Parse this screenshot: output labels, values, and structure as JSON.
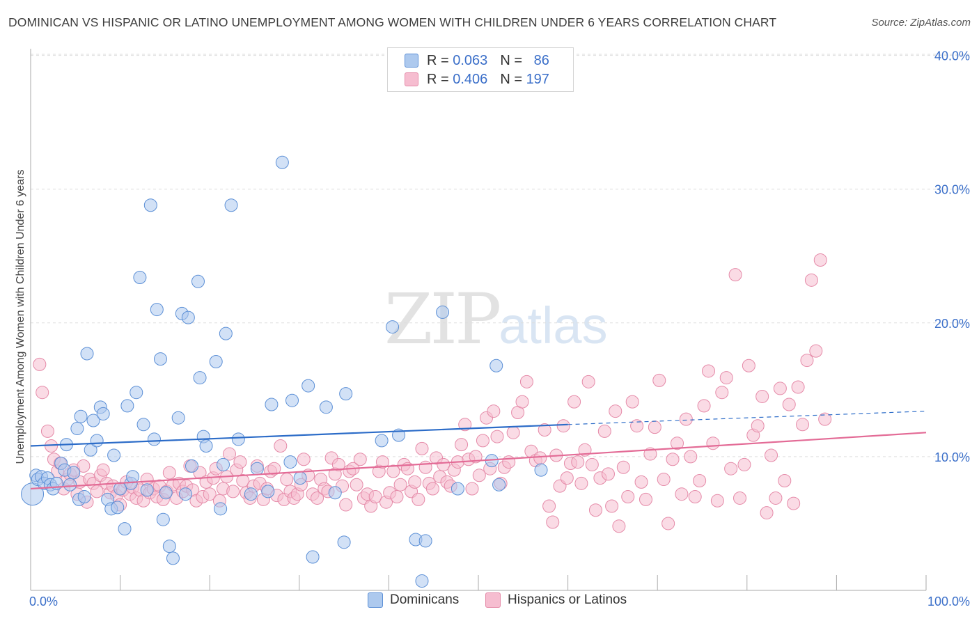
{
  "title": "DOMINICAN VS HISPANIC OR LATINO UNEMPLOYMENT AMONG WOMEN WITH CHILDREN UNDER 6 YEARS CORRELATION CHART",
  "source": "Source: ZipAtlas.com",
  "watermark": {
    "zip": "ZIP",
    "atlas": "atlas"
  },
  "legend": {
    "rows": [
      {
        "r_label": "R =",
        "r_value": "0.063",
        "n_label": "N =",
        "n_value": "86"
      },
      {
        "r_label": "R =",
        "r_value": "0.406",
        "n_label": "N =",
        "n_value": "197"
      }
    ]
  },
  "colors": {
    "dominicans_fill": "#adc9ee",
    "dominicans_stroke": "#5b8fd6",
    "dominicans_line": "#2c6cc8",
    "hispanics_fill": "#f6bdd0",
    "hispanics_stroke": "#e58aa8",
    "hispanics_line": "#e36b96",
    "tick_label": "#3b6fc9",
    "grid": "#dddddd",
    "axis": "#aaaaaa"
  },
  "chart_data": {
    "type": "scatter",
    "title": "DOMINICAN VS HISPANIC OR LATINO UNEMPLOYMENT AMONG WOMEN WITH CHILDREN UNDER 6 YEARS CORRELATION CHART",
    "xlabel": "",
    "ylabel": "Unemployment Among Women with Children Under 6 years",
    "xlim": [
      0,
      100
    ],
    "ylim": [
      0,
      40.5
    ],
    "x_tick_labels": [
      {
        "value": 0,
        "label": "0.0%"
      },
      {
        "value": 100,
        "label": "100.0%"
      }
    ],
    "y_tick_labels": [
      {
        "value": 10,
        "label": "10.0%"
      },
      {
        "value": 20,
        "label": "20.0%"
      },
      {
        "value": 30,
        "label": "30.0%"
      },
      {
        "value": 40,
        "label": "40.0%"
      }
    ],
    "grid": true,
    "legend_position": "top-center",
    "series": [
      {
        "name": "Dominicans",
        "r": 0.063,
        "n": 86,
        "trend": {
          "x0": 0,
          "y0": 10.8,
          "x1": 60,
          "y1": 12.4,
          "dash_to_x": 100,
          "dash_to_y": 13.4
        },
        "points": [
          [
            0.2,
            7.2
          ],
          [
            0.6,
            8.6
          ],
          [
            0.8,
            8.3
          ],
          [
            1.2,
            8.5
          ],
          [
            1.5,
            8.0
          ],
          [
            1.9,
            8.4
          ],
          [
            2.2,
            7.9
          ],
          [
            2.5,
            7.6
          ],
          [
            2.9,
            8.0
          ],
          [
            3.4,
            9.5
          ],
          [
            3.8,
            9.0
          ],
          [
            4.0,
            10.9
          ],
          [
            4.4,
            7.9
          ],
          [
            4.8,
            8.8
          ],
          [
            5.2,
            12.1
          ],
          [
            5.4,
            6.8
          ],
          [
            5.6,
            13.0
          ],
          [
            6.0,
            7.0
          ],
          [
            6.3,
            17.7
          ],
          [
            6.7,
            10.5
          ],
          [
            7.0,
            12.7
          ],
          [
            7.4,
            11.2
          ],
          [
            7.8,
            13.7
          ],
          [
            8.1,
            13.2
          ],
          [
            8.6,
            6.8
          ],
          [
            9.0,
            6.1
          ],
          [
            9.3,
            10.1
          ],
          [
            9.7,
            6.2
          ],
          [
            10.0,
            7.6
          ],
          [
            10.5,
            4.6
          ],
          [
            10.8,
            13.8
          ],
          [
            11.2,
            8.0
          ],
          [
            11.4,
            8.5
          ],
          [
            11.8,
            14.8
          ],
          [
            12.2,
            23.4
          ],
          [
            12.6,
            12.4
          ],
          [
            13.0,
            7.5
          ],
          [
            13.4,
            28.8
          ],
          [
            13.8,
            11.3
          ],
          [
            14.1,
            21.0
          ],
          [
            14.5,
            17.3
          ],
          [
            14.8,
            5.3
          ],
          [
            15.1,
            7.3
          ],
          [
            15.5,
            3.3
          ],
          [
            15.9,
            2.4
          ],
          [
            16.5,
            12.9
          ],
          [
            16.9,
            20.7
          ],
          [
            17.3,
            7.2
          ],
          [
            17.6,
            20.4
          ],
          [
            18.0,
            9.3
          ],
          [
            18.7,
            23.1
          ],
          [
            18.9,
            15.9
          ],
          [
            19.3,
            11.5
          ],
          [
            19.6,
            10.8
          ],
          [
            20.7,
            17.1
          ],
          [
            21.2,
            6.1
          ],
          [
            21.5,
            9.4
          ],
          [
            21.8,
            19.2
          ],
          [
            22.4,
            28.8
          ],
          [
            23.2,
            11.3
          ],
          [
            24.6,
            7.2
          ],
          [
            25.3,
            9.1
          ],
          [
            26.5,
            7.4
          ],
          [
            26.9,
            13.9
          ],
          [
            28.1,
            32.0
          ],
          [
            29.0,
            9.6
          ],
          [
            29.2,
            14.2
          ],
          [
            30.1,
            8.4
          ],
          [
            31.0,
            15.3
          ],
          [
            31.5,
            2.5
          ],
          [
            33.0,
            13.7
          ],
          [
            34.0,
            7.3
          ],
          [
            35.0,
            3.6
          ],
          [
            35.2,
            14.7
          ],
          [
            39.2,
            11.2
          ],
          [
            40.4,
            19.7
          ],
          [
            41.1,
            11.6
          ],
          [
            43.0,
            3.8
          ],
          [
            43.7,
            0.7
          ],
          [
            44.1,
            3.7
          ],
          [
            46.0,
            20.8
          ],
          [
            47.7,
            7.6
          ],
          [
            51.5,
            9.7
          ],
          [
            52.0,
            16.8
          ],
          [
            52.3,
            7.9
          ],
          [
            57.0,
            9.0
          ]
        ]
      },
      {
        "name": "Hispanics or Latinos",
        "r": 0.406,
        "n": 197,
        "trend": {
          "x0": 0,
          "y0": 7.6,
          "x1": 100,
          "y1": 11.8
        },
        "points": [
          [
            1.0,
            16.9
          ],
          [
            1.3,
            14.8
          ],
          [
            1.9,
            11.9
          ],
          [
            2.3,
            10.8
          ],
          [
            2.6,
            9.8
          ],
          [
            3.0,
            8.9
          ],
          [
            3.3,
            9.5
          ],
          [
            3.7,
            7.6
          ],
          [
            4.1,
            8.3
          ],
          [
            4.4,
            8.7
          ],
          [
            4.8,
            9.0
          ],
          [
            5.2,
            7.2
          ],
          [
            5.5,
            8.1
          ],
          [
            5.9,
            9.3
          ],
          [
            6.3,
            6.6
          ],
          [
            6.6,
            8.3
          ],
          [
            7.0,
            8.0
          ],
          [
            7.4,
            7.4
          ],
          [
            7.8,
            8.6
          ],
          [
            8.1,
            9.0
          ],
          [
            8.5,
            8.0
          ],
          [
            8.9,
            7.3
          ],
          [
            9.2,
            7.8
          ],
          [
            9.6,
            7.1
          ],
          [
            10.0,
            6.4
          ],
          [
            10.3,
            7.5
          ],
          [
            10.7,
            8.1
          ],
          [
            11.1,
            7.2
          ],
          [
            11.4,
            7.7
          ],
          [
            11.8,
            6.9
          ],
          [
            12.2,
            7.5
          ],
          [
            12.6,
            6.7
          ],
          [
            13.0,
            8.3
          ],
          [
            13.3,
            7.3
          ],
          [
            13.7,
            7.6
          ],
          [
            14.1,
            7.0
          ],
          [
            14.4,
            7.8
          ],
          [
            14.8,
            6.8
          ],
          [
            15.2,
            7.4
          ],
          [
            15.5,
            8.8
          ],
          [
            15.9,
            7.9
          ],
          [
            16.3,
            6.9
          ],
          [
            16.6,
            8.0
          ],
          [
            17.0,
            7.4
          ],
          [
            17.4,
            7.8
          ],
          [
            17.8,
            9.3
          ],
          [
            18.1,
            7.5
          ],
          [
            18.5,
            6.7
          ],
          [
            18.9,
            8.8
          ],
          [
            19.2,
            7.0
          ],
          [
            19.6,
            8.1
          ],
          [
            20.0,
            7.2
          ],
          [
            20.4,
            8.4
          ],
          [
            20.7,
            9.1
          ],
          [
            21.1,
            6.7
          ],
          [
            21.5,
            7.6
          ],
          [
            21.9,
            8.5
          ],
          [
            22.2,
            10.2
          ],
          [
            22.6,
            7.4
          ],
          [
            23.0,
            9.0
          ],
          [
            23.4,
            9.6
          ],
          [
            23.7,
            8.2
          ],
          [
            24.1,
            7.3
          ],
          [
            24.5,
            6.9
          ],
          [
            24.9,
            7.8
          ],
          [
            25.3,
            9.3
          ],
          [
            25.6,
            8.0
          ],
          [
            26.0,
            6.8
          ],
          [
            26.4,
            7.6
          ],
          [
            26.8,
            8.9
          ],
          [
            27.2,
            9.1
          ],
          [
            27.5,
            7.1
          ],
          [
            27.9,
            10.8
          ],
          [
            28.3,
            6.8
          ],
          [
            28.6,
            8.3
          ],
          [
            29.0,
            7.4
          ],
          [
            29.4,
            6.9
          ],
          [
            29.8,
            7.2
          ],
          [
            30.2,
            7.9
          ],
          [
            30.5,
            9.8
          ],
          [
            31.0,
            8.6
          ],
          [
            31.5,
            7.2
          ],
          [
            32.0,
            6.9
          ],
          [
            32.4,
            8.3
          ],
          [
            32.8,
            7.6
          ],
          [
            33.2,
            7.4
          ],
          [
            33.6,
            9.9
          ],
          [
            34.0,
            8.7
          ],
          [
            34.4,
            9.4
          ],
          [
            34.8,
            7.8
          ],
          [
            35.2,
            6.4
          ],
          [
            35.6,
            8.9
          ],
          [
            36.0,
            9.1
          ],
          [
            36.4,
            7.9
          ],
          [
            36.8,
            9.8
          ],
          [
            37.2,
            6.9
          ],
          [
            37.6,
            7.2
          ],
          [
            38.0,
            6.3
          ],
          [
            38.5,
            7.0
          ],
          [
            38.9,
            8.9
          ],
          [
            39.3,
            9.6
          ],
          [
            39.7,
            6.6
          ],
          [
            40.1,
            7.3
          ],
          [
            40.5,
            8.9
          ],
          [
            40.9,
            7.0
          ],
          [
            41.3,
            7.9
          ],
          [
            41.7,
            9.4
          ],
          [
            42.1,
            9.1
          ],
          [
            42.5,
            7.4
          ],
          [
            42.9,
            8.1
          ],
          [
            43.3,
            6.8
          ],
          [
            43.7,
            10.6
          ],
          [
            44.1,
            9.2
          ],
          [
            44.5,
            8.0
          ],
          [
            44.9,
            7.6
          ],
          [
            45.3,
            9.9
          ],
          [
            45.7,
            8.5
          ],
          [
            46.1,
            9.4
          ],
          [
            46.5,
            8.1
          ],
          [
            46.9,
            7.8
          ],
          [
            47.3,
            9.0
          ],
          [
            47.7,
            9.6
          ],
          [
            48.1,
            10.9
          ],
          [
            48.5,
            12.4
          ],
          [
            48.9,
            9.8
          ],
          [
            49.3,
            7.6
          ],
          [
            49.7,
            10.0
          ],
          [
            50.1,
            8.6
          ],
          [
            50.5,
            11.2
          ],
          [
            50.9,
            12.9
          ],
          [
            51.3,
            9.1
          ],
          [
            51.7,
            13.4
          ],
          [
            52.1,
            11.5
          ],
          [
            52.5,
            8.0
          ],
          [
            52.9,
            9.2
          ],
          [
            53.4,
            9.6
          ],
          [
            53.9,
            11.8
          ],
          [
            54.4,
            13.3
          ],
          [
            54.9,
            14.1
          ],
          [
            55.4,
            15.6
          ],
          [
            55.9,
            10.4
          ],
          [
            56.4,
            9.7
          ],
          [
            56.9,
            9.9
          ],
          [
            57.4,
            12.0
          ],
          [
            57.9,
            6.3
          ],
          [
            58.3,
            5.1
          ],
          [
            58.7,
            10.1
          ],
          [
            59.1,
            7.8
          ],
          [
            59.5,
            12.3
          ],
          [
            59.9,
            8.4
          ],
          [
            60.3,
            9.5
          ],
          [
            60.7,
            14.1
          ],
          [
            61.1,
            9.6
          ],
          [
            61.5,
            8.0
          ],
          [
            61.9,
            10.5
          ],
          [
            62.3,
            15.6
          ],
          [
            62.7,
            9.4
          ],
          [
            63.1,
            6.0
          ],
          [
            63.6,
            8.4
          ],
          [
            64.1,
            11.9
          ],
          [
            64.5,
            8.7
          ],
          [
            64.9,
            6.3
          ],
          [
            65.3,
            13.4
          ],
          [
            65.7,
            4.8
          ],
          [
            66.2,
            9.2
          ],
          [
            66.7,
            7.0
          ],
          [
            67.2,
            14.1
          ],
          [
            67.7,
            12.3
          ],
          [
            68.2,
            8.1
          ],
          [
            68.7,
            6.8
          ],
          [
            69.2,
            10.2
          ],
          [
            69.7,
            12.2
          ],
          [
            70.2,
            15.7
          ],
          [
            70.7,
            8.3
          ],
          [
            71.2,
            5.0
          ],
          [
            71.7,
            9.8
          ],
          [
            72.2,
            11.0
          ],
          [
            72.7,
            7.2
          ],
          [
            73.2,
            12.8
          ],
          [
            73.7,
            10.0
          ],
          [
            74.2,
            7.0
          ],
          [
            74.7,
            8.2
          ],
          [
            75.2,
            13.8
          ],
          [
            75.7,
            16.4
          ],
          [
            76.2,
            11.0
          ],
          [
            76.7,
            6.7
          ],
          [
            77.2,
            14.8
          ],
          [
            77.7,
            15.9
          ],
          [
            78.2,
            9.1
          ],
          [
            78.7,
            23.6
          ],
          [
            79.2,
            6.9
          ],
          [
            79.7,
            9.4
          ],
          [
            80.2,
            16.8
          ],
          [
            80.7,
            11.6
          ],
          [
            81.2,
            12.3
          ],
          [
            81.7,
            14.5
          ],
          [
            82.2,
            5.8
          ],
          [
            82.7,
            10.1
          ],
          [
            83.2,
            6.9
          ],
          [
            83.7,
            15.1
          ],
          [
            84.2,
            8.2
          ],
          [
            84.7,
            13.9
          ],
          [
            85.2,
            6.5
          ],
          [
            85.7,
            15.2
          ],
          [
            86.2,
            12.4
          ],
          [
            86.7,
            17.2
          ],
          [
            87.2,
            23.2
          ],
          [
            87.7,
            17.9
          ],
          [
            88.2,
            24.7
          ],
          [
            88.7,
            12.8
          ]
        ]
      }
    ]
  },
  "bottom_legend": [
    "Dominicans",
    "Hispanics or Latinos"
  ]
}
